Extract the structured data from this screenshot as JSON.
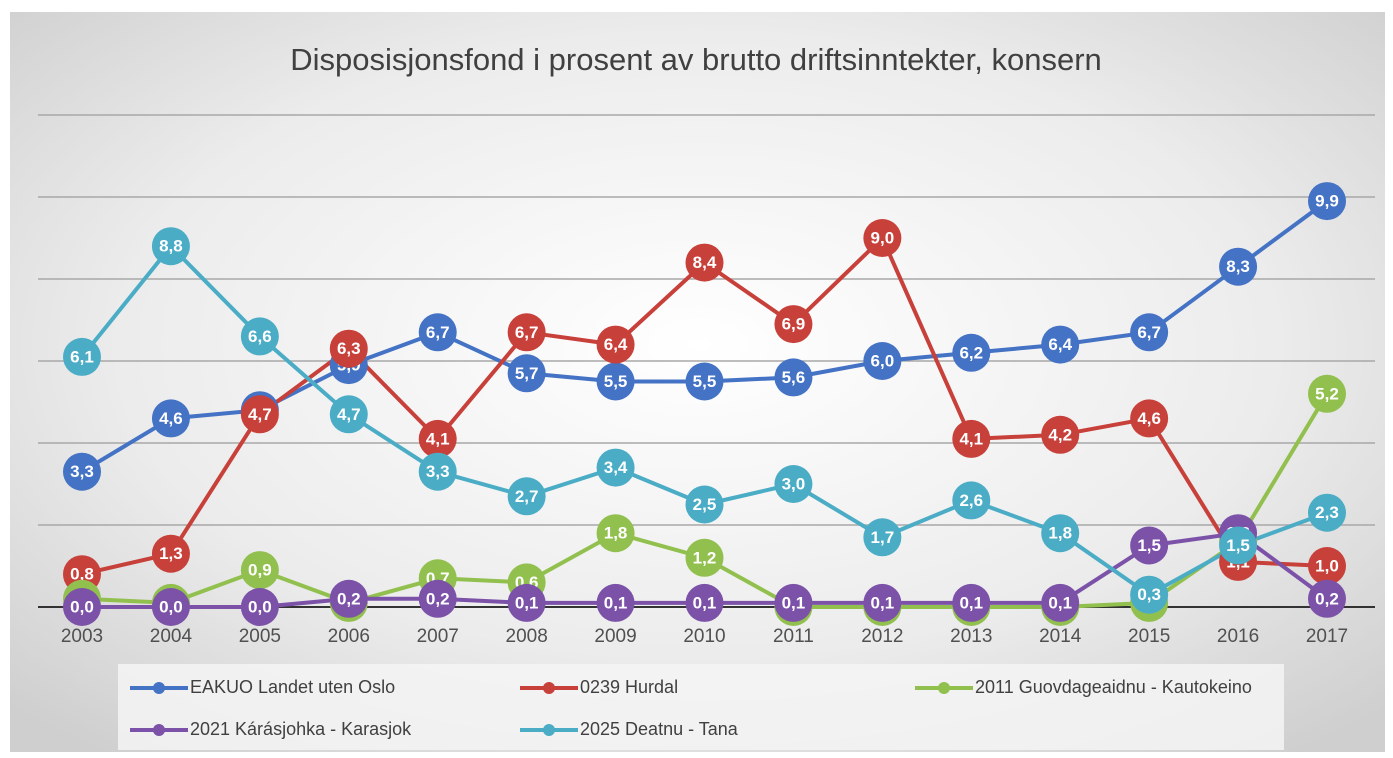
{
  "chart_data": {
    "type": "line",
    "title": "Disposisjonsfond i prosent av brutto driftsinntekter, konsern",
    "categories": [
      "2003",
      "2004",
      "2005",
      "2006",
      "2007",
      "2008",
      "2009",
      "2010",
      "2011",
      "2012",
      "2013",
      "2014",
      "2015",
      "2016",
      "2017"
    ],
    "ylim": [
      0,
      12
    ],
    "yticks": [
      0,
      2,
      4,
      6,
      8,
      10,
      12
    ],
    "grid": true,
    "legend": "bottom",
    "series": [
      {
        "name": "EAKUO Landet uten Oslo",
        "color": "#4472c4",
        "values": [
          3.3,
          4.6,
          4.8,
          5.9,
          6.7,
          5.7,
          5.5,
          5.5,
          5.6,
          6.0,
          6.2,
          6.4,
          6.7,
          8.3,
          9.9
        ],
        "value_labels": [
          "3,3",
          "4,6",
          "4,8",
          "5,9",
          "6,7",
          "5,7",
          "5,5",
          "5,5",
          "5,6",
          "6,0",
          "6,2",
          "6,4",
          "6,7",
          "8,3",
          "9,9"
        ]
      },
      {
        "name": "0239 Hurdal",
        "color": "#c8403a",
        "values": [
          0.8,
          1.3,
          4.7,
          6.3,
          4.1,
          6.7,
          6.4,
          8.4,
          6.9,
          9.0,
          4.1,
          4.2,
          4.6,
          1.1,
          1.0
        ],
        "value_labels": [
          "0,8",
          "1,3",
          "4,7",
          "6,3",
          "4,1",
          "6,7",
          "6,4",
          "8,4",
          "6,9",
          "9,0",
          "4,1",
          "4,2",
          "4,6",
          "1,1",
          "1,0"
        ]
      },
      {
        "name": "2011 Guovdageaidnu - Kautokeino",
        "color": "#92c04e",
        "values": [
          0.2,
          0.1,
          0.9,
          0.1,
          0.7,
          0.6,
          1.8,
          1.2,
          0.0,
          0.0,
          0.0,
          0.0,
          0.1,
          1.6,
          5.2
        ],
        "value_labels": [
          "0,2",
          "0,1",
          "0,9",
          "0,1",
          "0,7",
          "0,6",
          "1,8",
          "1,2",
          "0,0",
          "0,0",
          "0,0",
          "0,0",
          "0,1",
          "1,6",
          "5,2"
        ]
      },
      {
        "name": "2021 Kárásjohka - Karasjok",
        "color": "#7b52a8",
        "values": [
          0.0,
          0.0,
          0.0,
          0.2,
          0.2,
          0.1,
          0.1,
          0.1,
          0.1,
          0.1,
          0.1,
          0.1,
          1.5,
          1.8,
          0.2
        ],
        "value_labels": [
          "0,0",
          "0,0",
          "0,0",
          "0,2",
          "0,2",
          "0,1",
          "0,1",
          "0,1",
          "0,1",
          "0,1",
          "0,1",
          "0,1",
          "1,5",
          "1,8",
          "0,2"
        ]
      },
      {
        "name": "2025 Deatnu - Tana",
        "color": "#4bacc6",
        "values": [
          6.1,
          8.8,
          6.6,
          4.7,
          3.3,
          2.7,
          3.4,
          2.5,
          3.0,
          1.7,
          2.6,
          1.8,
          0.3,
          1.5,
          2.3
        ],
        "value_labels": [
          "6,1",
          "8,8",
          "6,6",
          "4,7",
          "3,3",
          "2,7",
          "3,4",
          "2,5",
          "3,0",
          "1,7",
          "2,6",
          "1,8",
          "0,3",
          "1,5",
          "2,3"
        ]
      }
    ]
  }
}
